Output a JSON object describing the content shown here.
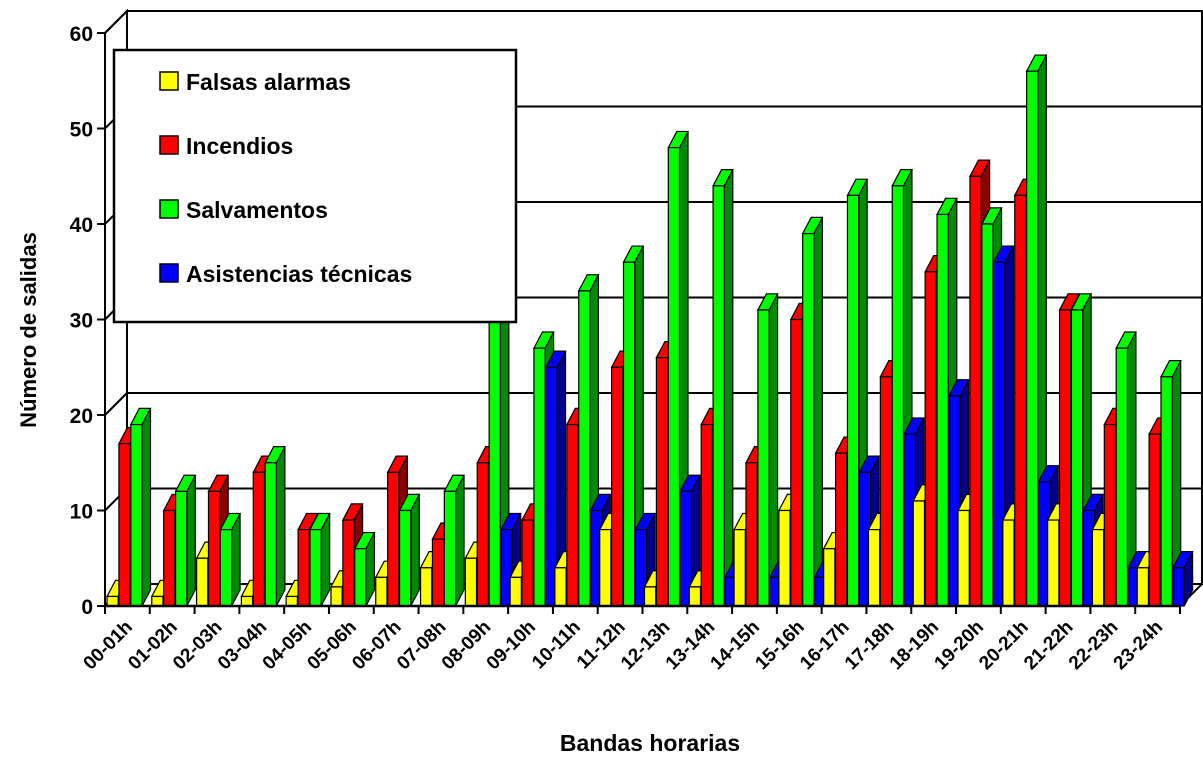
{
  "chart_data": {
    "type": "bar",
    "title": "",
    "xlabel": "Bandas horarias",
    "ylabel": "Número de salidas",
    "ylim": [
      0,
      60
    ],
    "yticks": [
      0,
      10,
      20,
      30,
      40,
      50,
      60
    ],
    "grid": true,
    "legend_position": "top-left",
    "categories": [
      "00-01h",
      "01-02h",
      "02-03h",
      "03-04h",
      "04-05h",
      "05-06h",
      "06-07h",
      "07-08h",
      "08-09h",
      "09-10h",
      "10-11h",
      "11-12h",
      "12-13h",
      "13-14h",
      "14-15h",
      "15-16h",
      "16-17h",
      "17-18h",
      "18-19h",
      "19-20h",
      "20-21h",
      "21-22h",
      "22-23h",
      "23-24h"
    ],
    "series": [
      {
        "name": "Falsas alarmas",
        "color": "#ffff00",
        "values": [
          1,
          1,
          5,
          1,
          1,
          2,
          3,
          4,
          5,
          3,
          4,
          8,
          2,
          2,
          8,
          10,
          6,
          8,
          11,
          10,
          9,
          9,
          8,
          4
        ]
      },
      {
        "name": "Incendios",
        "color": "#ff0000",
        "values": [
          17,
          10,
          12,
          14,
          8,
          9,
          14,
          7,
          15,
          9,
          19,
          25,
          26,
          19,
          15,
          30,
          16,
          24,
          35,
          45,
          43,
          31,
          19,
          18
        ]
      },
      {
        "name": "Salvamentos",
        "color": "#00ff00",
        "values": [
          19,
          12,
          8,
          15,
          8,
          6,
          10,
          12,
          31,
          27,
          33,
          36,
          48,
          44,
          31,
          39,
          43,
          44,
          41,
          40,
          56,
          31,
          27,
          24
        ]
      },
      {
        "name": "Asistencias técnicas",
        "color": "#0000ff",
        "values": [
          0,
          0,
          0,
          0,
          0,
          0,
          0,
          0,
          8,
          25,
          10,
          8,
          12,
          3,
          3,
          3,
          14,
          18,
          22,
          36,
          13,
          10,
          4,
          4
        ]
      }
    ]
  }
}
